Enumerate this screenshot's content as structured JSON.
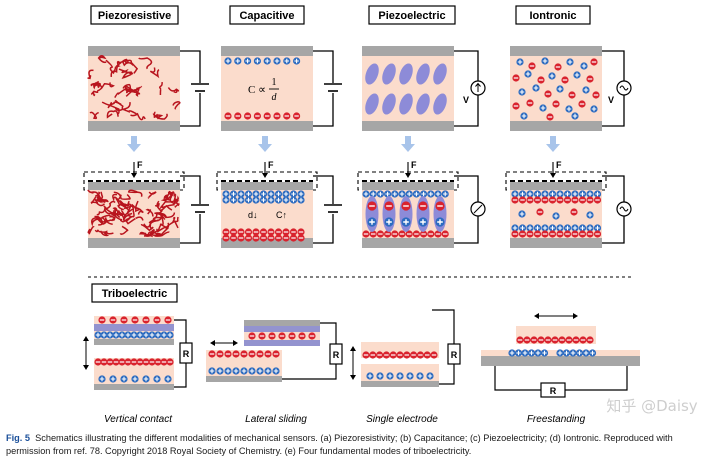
{
  "panels": {
    "piezoresistive": {
      "title": "Piezoresistive"
    },
    "capacitive": {
      "title": "Capacitive",
      "formula_lhs": "C ∝",
      "formula_num": "1",
      "formula_den": "d",
      "label_d": "d↓",
      "label_c": "C↑"
    },
    "piezoelectric": {
      "title": "Piezoelectric",
      "voltage_label": "V"
    },
    "iontronic": {
      "title": "Iontronic",
      "voltage_label": "V"
    }
  },
  "force_label": "F",
  "triboelectric": {
    "title": "Triboelectric",
    "resistor_label": "R",
    "modes": [
      {
        "label": "Vertical contact"
      },
      {
        "label": "Lateral sliding"
      },
      {
        "label": "Single electrode"
      },
      {
        "label": "Freestanding"
      }
    ]
  },
  "caption": {
    "fig_label": "Fig. 5",
    "text": "Schematics illustrating the different modalities of mechanical sensors. (a) Piezoresistivity; (b) Capacitance; (c) Piezoelectricity; (d) Iontronic. Reproduced with permission from ref. 78. Copyright 2018 Royal Society of Chemistry. (e) Four fundamental modes of triboelectricity."
  },
  "watermark": "知乎 @Daisy",
  "colors": {
    "electrode": "#a6a6a6",
    "medium": "#fbdccc",
    "fiber": "#b8141e",
    "negative": "#d9232e",
    "positive": "#2c6bc0",
    "ellipse": "#8d8bd8",
    "arrow": "#a8c4ea",
    "tribo_layer": "#9393cf"
  }
}
